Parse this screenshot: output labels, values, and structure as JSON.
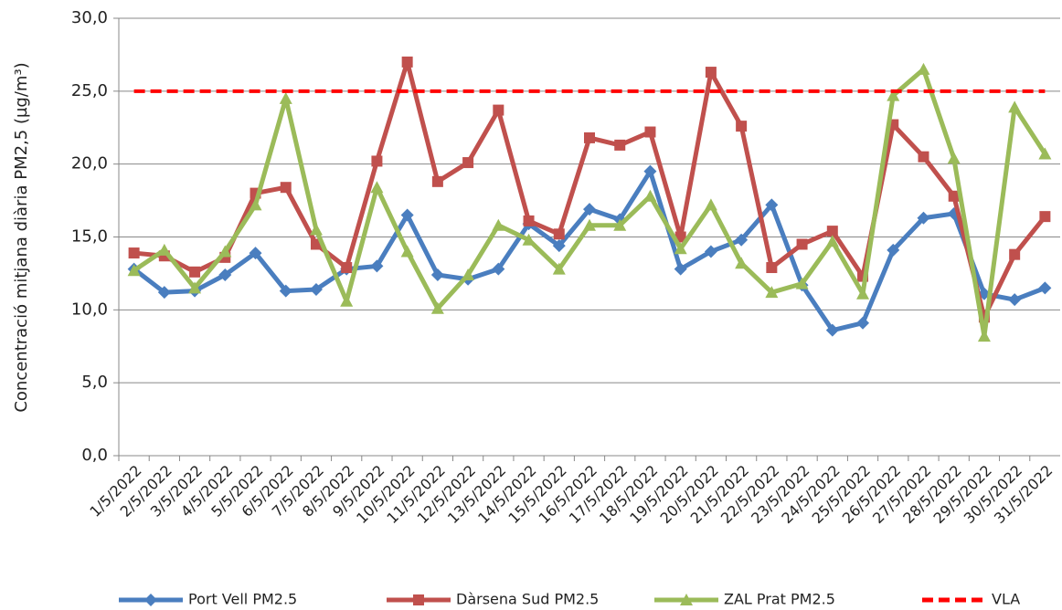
{
  "chart_data": {
    "type": "line",
    "y_label": "Concentració mitjana diària PM2,5 (µg/m³)",
    "categories": [
      "1/5/2022",
      "2/5/2022",
      "3/5/2022",
      "4/5/2022",
      "5/5/2022",
      "6/5/2022",
      "7/5/2022",
      "8/5/2022",
      "9/5/2022",
      "10/5/2022",
      "11/5/2022",
      "12/5/2022",
      "13/5/2022",
      "14/5/2022",
      "15/5/2022",
      "16/5/2022",
      "17/5/2022",
      "18/5/2022",
      "19/5/2022",
      "20/5/2022",
      "21/5/2022",
      "22/5/2022",
      "23/5/2022",
      "24/5/2022",
      "25/5/2022",
      "26/5/2022",
      "27/5/2022",
      "28/5/2022",
      "29/5/2022",
      "30/5/2022",
      "31/5/2022"
    ],
    "series": [
      {
        "name": "Port Vell PM2.5",
        "color": "#4a7ebf",
        "marker": "diamond",
        "values": [
          12.8,
          11.2,
          11.3,
          12.4,
          13.9,
          11.3,
          11.4,
          12.8,
          13.0,
          16.5,
          12.4,
          12.1,
          12.8,
          15.9,
          14.4,
          16.9,
          16.2,
          19.5,
          12.8,
          14.0,
          14.8,
          17.2,
          11.7,
          8.6,
          9.1,
          14.1,
          16.3,
          16.6,
          11.1,
          10.7,
          11.5
        ]
      },
      {
        "name": "Dàrsena Sud PM2.5",
        "color": "#c0504d",
        "marker": "square",
        "values": [
          13.9,
          13.7,
          12.6,
          13.6,
          18.0,
          18.4,
          14.5,
          12.9,
          20.2,
          27.0,
          18.8,
          20.1,
          23.7,
          16.1,
          15.2,
          21.8,
          21.3,
          22.2,
          15.0,
          26.3,
          22.6,
          12.9,
          14.5,
          15.4,
          12.3,
          22.7,
          20.5,
          17.8,
          9.5,
          13.8,
          16.4
        ]
      },
      {
        "name": "ZAL Prat PM2.5",
        "color": "#9bbb59",
        "marker": "triangle",
        "values": [
          12.7,
          14.1,
          11.5,
          14.0,
          17.2,
          24.5,
          15.5,
          10.6,
          18.4,
          14.0,
          10.1,
          12.4,
          15.8,
          14.8,
          12.8,
          15.8,
          15.8,
          17.8,
          14.2,
          17.2,
          13.2,
          11.2,
          11.8,
          14.7,
          11.1,
          24.7,
          26.5,
          20.4,
          8.2,
          23.9,
          20.7
        ]
      },
      {
        "name": "VLA",
        "color": "#ff0000",
        "dashed": true,
        "values": [
          25,
          25,
          25,
          25,
          25,
          25,
          25,
          25,
          25,
          25,
          25,
          25,
          25,
          25,
          25,
          25,
          25,
          25,
          25,
          25,
          25,
          25,
          25,
          25,
          25,
          25,
          25,
          25,
          25,
          25,
          25
        ]
      }
    ],
    "ylim": [
      0,
      30
    ],
    "yticks": [
      {
        "value": 0,
        "label": "0,0"
      },
      {
        "value": 5,
        "label": "5,0"
      },
      {
        "value": 10,
        "label": "10,0"
      },
      {
        "value": 15,
        "label": "15,0"
      },
      {
        "value": 20,
        "label": "20,0"
      },
      {
        "value": 25,
        "label": "25,0"
      },
      {
        "value": 30,
        "label": "30,0"
      }
    ],
    "grid": true
  }
}
